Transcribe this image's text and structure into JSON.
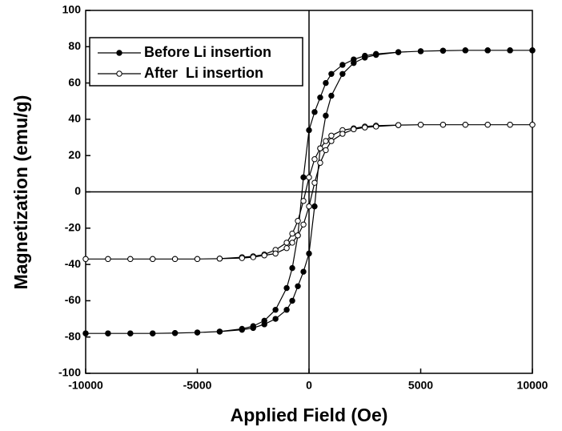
{
  "chart_data": {
    "type": "line",
    "x_label": "Applied Field (Oe)",
    "y_label": "Magnetization (emu/g)",
    "x": [
      10000,
      9000,
      8000,
      7000,
      6000,
      5000,
      4000,
      3000,
      2500,
      2000,
      1500,
      1000,
      750,
      500,
      250,
      0,
      -250,
      -500,
      -750,
      -1000,
      -1500,
      -2000,
      -2500,
      -3000,
      -4000,
      -5000,
      -6000,
      -7000,
      -8000,
      -9000,
      -10000,
      -10000,
      -9000,
      -8000,
      -7000,
      -6000,
      -5000,
      -4000,
      -3000,
      -2500,
      -2000,
      -1500,
      -1000,
      -750,
      -500,
      -250,
      0,
      250,
      500,
      750,
      1000,
      1500,
      2000,
      2500,
      3000,
      4000,
      5000,
      6000,
      7000,
      8000,
      9000,
      10000
    ],
    "series": [
      {
        "name": "Before Li insertion",
        "color": "#000000",
        "marker": "filled",
        "values": [
          78,
          78,
          78,
          78,
          77.8,
          77.5,
          77,
          76,
          75,
          73,
          70,
          65,
          60,
          52,
          44,
          34,
          8,
          -24,
          -42,
          -53,
          -65,
          -71,
          -74,
          -75.5,
          -77,
          -77.5,
          -77.8,
          -78,
          -78,
          -78,
          -78,
          -78,
          -78,
          -78,
          -78,
          -77.8,
          -77.5,
          -77,
          -76,
          -75,
          -73,
          -70,
          -65,
          -60,
          -52,
          -44,
          -34,
          -8,
          24,
          42,
          53,
          65,
          71,
          74,
          75.5,
          77,
          77.5,
          77.8,
          78,
          78,
          78,
          78
        ]
      },
      {
        "name": "After  Li insertion",
        "color": "#000000",
        "marker": "open",
        "values": [
          37,
          37,
          37,
          37,
          37,
          37,
          36.8,
          36.5,
          36,
          35,
          34,
          31,
          28,
          24,
          18,
          8,
          -5,
          -16,
          -23,
          -28,
          -32,
          -34.5,
          -35.5,
          -36,
          -36.8,
          -37,
          -37,
          -37,
          -37,
          -37,
          -37,
          -37,
          -37,
          -37,
          -37,
          -37,
          -37,
          -36.8,
          -36.5,
          -36,
          -35,
          -34,
          -31,
          -28,
          -24,
          -18,
          -8,
          5,
          16,
          23,
          28,
          32,
          34.5,
          35.5,
          36,
          36.8,
          37,
          37,
          37,
          37,
          37,
          37
        ]
      }
    ],
    "xlim": [
      -10000,
      10000
    ],
    "xticks": [
      -10000,
      -5000,
      0,
      5000,
      10000
    ],
    "ylim": [
      -100,
      100
    ],
    "yticks": [
      -100,
      -80,
      -60,
      -40,
      -20,
      0,
      20,
      40,
      60,
      80,
      100
    ],
    "grid": false,
    "legend": "upper left"
  }
}
